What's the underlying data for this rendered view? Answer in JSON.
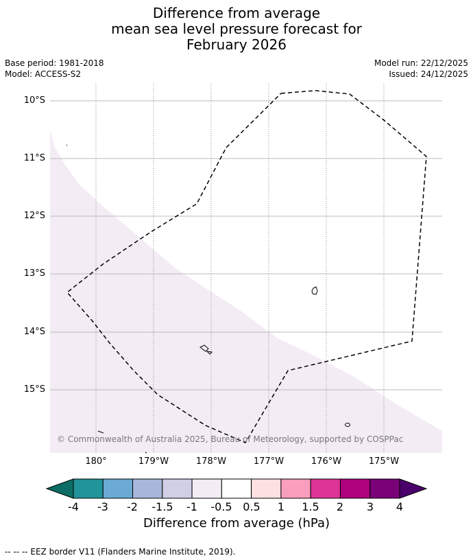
{
  "title": {
    "line1": "Difference from average",
    "line2": "mean sea level pressure forecast for",
    "line3": "February 2026"
  },
  "meta": {
    "base_period": "Base period: 1981-2018",
    "model": "Model: ACCESS-S2",
    "model_run": "Model run: 22/12/2025",
    "issued": "Issued: 24/12/2025"
  },
  "map": {
    "lat_labels": [
      "10°S",
      "11°S",
      "12°S",
      "13°S",
      "14°S",
      "15°S"
    ],
    "lon_labels": [
      "180°",
      "179°W",
      "178°W",
      "177°W",
      "176°W",
      "175°W"
    ],
    "field_color": "#f3ecf5",
    "eez_color": "#000000",
    "copyright": "© Commonwealth of Australia 2025, Bureau of Meteorology, supported by COSPPac"
  },
  "colorbar": {
    "labels": [
      "-4",
      "-3",
      "-2",
      "-1.5",
      "-1",
      "-0.5",
      "0.5",
      "1",
      "1.5",
      "2",
      "3",
      "4"
    ],
    "colors": [
      "#0c6d66",
      "#21939a",
      "#6aaad3",
      "#a7b7dc",
      "#d0cfe6",
      "#f3ecf5",
      "#ffffff",
      "#fde0e0",
      "#f99ebc",
      "#dd3497",
      "#ad017e",
      "#7a0177",
      "#4a006a"
    ],
    "title": "Difference from average (hPa)"
  },
  "footer": "--  --  -- EEZ border V11 (Flanders Marine Institute, 2019)."
}
